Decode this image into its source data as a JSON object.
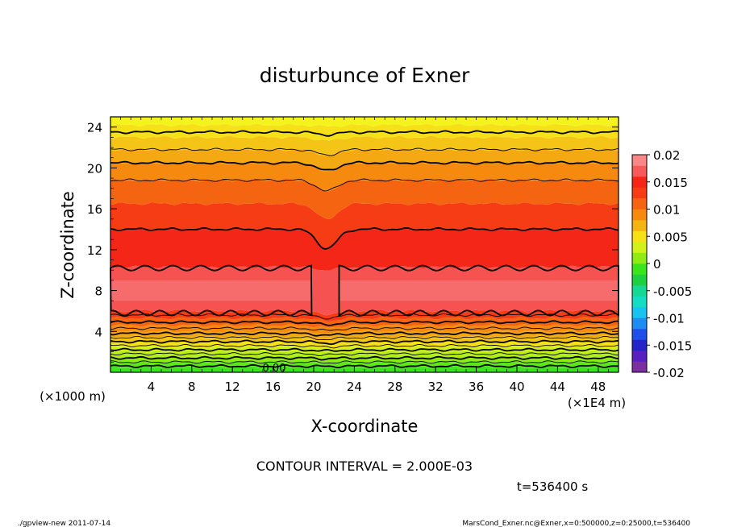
{
  "chart_data": {
    "type": "heatmap",
    "title": "disturbunce of Exner",
    "xlabel": "X-coordinate",
    "ylabel": "Z-coordinate",
    "x_unit_left": "(×1000 m)",
    "x_unit_right": "(×1E4 m)",
    "xlim": [
      0,
      50
    ],
    "ylim": [
      0,
      25
    ],
    "x_ticks": [
      4,
      8,
      12,
      16,
      20,
      24,
      28,
      32,
      36,
      40,
      44,
      48
    ],
    "y_ticks": [
      4,
      8,
      12,
      16,
      20,
      24
    ],
    "contour_label": "0.00",
    "contour_interval_text": "CONTOUR INTERVAL = 2.000E-03",
    "time_text": "t=536400 s",
    "colorbar": {
      "range": [
        -0.02,
        0.02
      ],
      "ticks": [
        "0.02",
        "0.015",
        "0.01",
        "0.005",
        "0",
        "-0.005",
        "-0.01",
        "-0.015",
        "-0.02"
      ],
      "colors": [
        "#7b2fa0",
        "#5a1fbf",
        "#2424c8",
        "#1f4fe8",
        "#1f8cf0",
        "#18c3f0",
        "#16dcc4",
        "#16d890",
        "#1ed040",
        "#3ce41e",
        "#8cec14",
        "#d2f01a",
        "#f6e018",
        "#f4b412",
        "#f58a0f",
        "#f56410",
        "#f53c14",
        "#f42618",
        "#f65a5a",
        "#f88888"
      ]
    },
    "field_bands": [
      {
        "z0": 0.0,
        "z1": 0.5,
        "color": "#3ce41e"
      },
      {
        "z0": 0.5,
        "z1": 1.0,
        "color": "#5ce81a"
      },
      {
        "z0": 1.0,
        "z1": 1.5,
        "color": "#8cec14"
      },
      {
        "z0": 1.5,
        "z1": 2.0,
        "color": "#b4ee16"
      },
      {
        "z0": 2.0,
        "z1": 2.5,
        "color": "#d2f01a"
      },
      {
        "z0": 2.5,
        "z1": 3.0,
        "color": "#f6e018"
      },
      {
        "z0": 3.0,
        "z1": 3.5,
        "color": "#f4c416"
      },
      {
        "z0": 3.5,
        "z1": 4.0,
        "color": "#f4a812"
      },
      {
        "z0": 4.0,
        "z1": 4.6,
        "color": "#f58a0f"
      },
      {
        "z0": 4.6,
        "z1": 5.3,
        "color": "#f56410"
      },
      {
        "z0": 5.3,
        "z1": 6.0,
        "color": "#f53c14"
      },
      {
        "z0": 6.0,
        "z1": 10.3,
        "color": "#f65252"
      },
      {
        "z0": 10.3,
        "z1": 14.0,
        "color": "#f42618"
      },
      {
        "z0": 14.0,
        "z1": 16.5,
        "color": "#f53c14"
      },
      {
        "z0": 16.5,
        "z1": 18.8,
        "color": "#f56410"
      },
      {
        "z0": 18.8,
        "z1": 20.5,
        "color": "#f58a0f"
      },
      {
        "z0": 20.5,
        "z1": 21.8,
        "color": "#f4a812"
      },
      {
        "z0": 21.8,
        "z1": 23.0,
        "color": "#f4c416"
      },
      {
        "z0": 23.0,
        "z1": 24.2,
        "color": "#f6e018"
      },
      {
        "z0": 24.2,
        "z1": 25.0,
        "color": "#f4f41c"
      }
    ],
    "contour_levels_z": [
      0.6,
      1.0,
      1.4,
      1.8,
      2.2,
      2.6,
      3.0,
      3.4,
      3.8,
      4.3,
      4.9,
      5.6,
      14.0,
      18.8,
      20.5,
      21.8,
      23.5
    ],
    "inner_region": {
      "z0": 5.8,
      "z1": 10.2,
      "gap_x": [
        19.8,
        22.5
      ],
      "color": "#f67070"
    },
    "dip_center_x": 21.3,
    "dip_width_x": 1.4
  },
  "footer": {
    "left": "./gpview-new  2011-07-14",
    "right": "MarsCond_Exner.nc@Exner,x=0:500000,z=0:25000,t=536400"
  }
}
